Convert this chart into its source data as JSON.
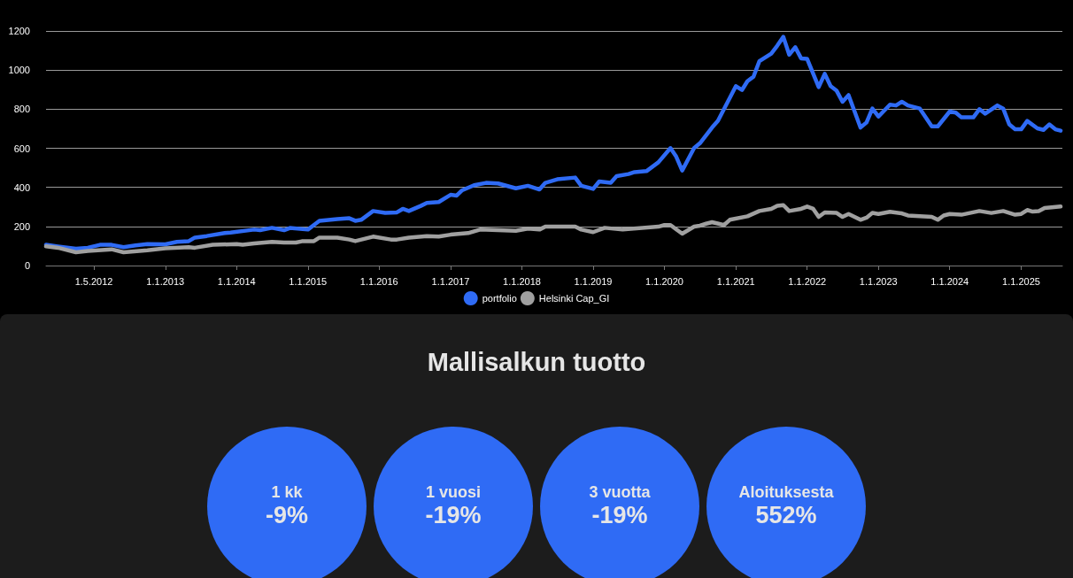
{
  "chart_data": [
    {
      "type": "line",
      "xlim": [
        "2011-05-01",
        "2025-07-31"
      ],
      "ylim": [
        0,
        1200
      ],
      "yticks": [
        0,
        200,
        400,
        600,
        800,
        1000,
        1200
      ],
      "xticks": [
        {
          "value": "2012-01-01",
          "label": "1.5.2012"
        },
        {
          "value": "2013-01-01",
          "label": "1.1.2013"
        },
        {
          "value": "2014-01-01",
          "label": "1.1.2014"
        },
        {
          "value": "2015-01-01",
          "label": "1.1.2015"
        },
        {
          "value": "2016-01-01",
          "label": "1.1.2016"
        },
        {
          "value": "2017-01-01",
          "label": "1.1.2017"
        },
        {
          "value": "2018-01-01",
          "label": "1.1.2018"
        },
        {
          "value": "2019-01-01",
          "label": "1.1.2019"
        },
        {
          "value": "2020-01-01",
          "label": "1.1.2020"
        },
        {
          "value": "2021-01-01",
          "label": "1.1.2021"
        },
        {
          "value": "2022-01-01",
          "label": "1.1.2022"
        },
        {
          "value": "2023-01-01",
          "label": "1.1.2023"
        },
        {
          "value": "2024-01-01",
          "label": "1.1.2024"
        },
        {
          "value": "2025-01-01",
          "label": "1.1.2025"
        }
      ],
      "grid": "y",
      "legend": "bottom",
      "marker": "none",
      "line_style": "solid",
      "series": [
        {
          "name": "portfolio",
          "color": "#2f6bf5",
          "x": [
            "2011-05",
            "2011-07",
            "2011-10",
            "2011-12",
            "2012-02",
            "2012-04",
            "2012-06",
            "2012-08",
            "2012-10",
            "2013-01",
            "2013-03",
            "2013-05",
            "2013-06",
            "2013-08",
            "2013-11",
            "2013-12",
            "2014-04",
            "2014-05",
            "2014-07",
            "2014-09",
            "2014-10",
            "2015-01",
            "2015-03",
            "2015-06",
            "2015-08",
            "2015-09",
            "2015-10",
            "2015-12",
            "2016-02",
            "2016-04",
            "2016-05",
            "2016-06",
            "2016-08",
            "2016-09",
            "2016-11",
            "2017-01",
            "2017-02",
            "2017-03",
            "2017-05",
            "2017-07",
            "2017-09",
            "2017-12",
            "2018-02",
            "2018-04",
            "2018-05",
            "2018-07",
            "2018-10",
            "2018-11",
            "2019-01",
            "2019-02",
            "2019-04",
            "2019-05",
            "2019-07",
            "2019-08",
            "2019-10",
            "2019-12",
            "2020-02",
            "2020-03",
            "2020-04",
            "2020-06",
            "2020-07",
            "2020-09",
            "2020-10",
            "2020-11",
            "2021-01",
            "2021-02",
            "2021-03",
            "2021-04",
            "2021-05",
            "2021-07",
            "2021-08",
            "2021-09",
            "2021-10",
            "2021-11",
            "2021-12",
            "2022-01",
            "2022-03",
            "2022-04",
            "2022-05",
            "2022-06",
            "2022-07",
            "2022-08",
            "2022-10",
            "2022-11",
            "2022-12",
            "2023-01",
            "2023-03",
            "2023-04",
            "2023-05",
            "2023-06",
            "2023-08",
            "2023-10",
            "2023-11",
            "2024-01",
            "2024-02",
            "2024-03",
            "2024-05",
            "2024-06",
            "2024-07",
            "2024-09",
            "2024-10",
            "2024-11",
            "2024-12",
            "2025-01",
            "2025-02",
            "2025-03-25",
            "2025-04-25",
            "2025-05-25",
            "2025-06-25",
            "2025-07-22"
          ],
          "values": [
            106,
            98,
            86,
            91,
            106,
            106,
            94,
            103,
            110,
            109,
            121,
            125,
            143,
            151,
            166,
            169,
            184,
            181,
            193,
            181,
            192,
            184,
            229,
            238,
            242,
            229,
            234,
            279,
            269,
            272,
            290,
            279,
            305,
            320,
            325,
            362,
            358,
            385,
            411,
            423,
            420,
            395,
            408,
            389,
            423,
            441,
            450,
            408,
            392,
            430,
            423,
            457,
            468,
            478,
            483,
            528,
            601,
            558,
            486,
            601,
            626,
            706,
            740,
            800,
            918,
            898,
            943,
            966,
            1045,
            1084,
            1125,
            1170,
            1079,
            1117,
            1060,
            1057,
            913,
            981,
            918,
            894,
            838,
            872,
            706,
            732,
            803,
            762,
            823,
            819,
            838,
            819,
            803,
            712,
            712,
            788,
            782,
            758,
            758,
            800,
            777,
            819,
            803,
            722,
            697,
            697,
            740,
            702,
            694,
            722,
            697,
            690
          ]
        },
        {
          "name": "Helsinki Cap_GI",
          "color": "#a0a0a0",
          "x": [
            "2011-05",
            "2011-07",
            "2011-10",
            "2011-12",
            "2012-04",
            "2012-06",
            "2012-10",
            "2013-01",
            "2013-05",
            "2013-06",
            "2013-09",
            "2014-01",
            "2014-02",
            "2014-04",
            "2014-07",
            "2014-09",
            "2014-11",
            "2014-12",
            "2015-02",
            "2015-03",
            "2015-06",
            "2015-08",
            "2015-09",
            "2015-12",
            "2016-03",
            "2016-04",
            "2016-06",
            "2016-09",
            "2016-11",
            "2017-01",
            "2017-04",
            "2017-06",
            "2017-09",
            "2017-12",
            "2018-02",
            "2018-04",
            "2018-05",
            "2018-10",
            "2018-11",
            "2019-01",
            "2019-03",
            "2019-06",
            "2019-12",
            "2020-01",
            "2020-02",
            "2020-04",
            "2020-06",
            "2020-07",
            "2020-08",
            "2020-09",
            "2020-11",
            "2020-12",
            "2021-03",
            "2021-05",
            "2021-07",
            "2021-08",
            "2021-09",
            "2021-10",
            "2021-12",
            "2022-01",
            "2022-02",
            "2022-03",
            "2022-04",
            "2022-06",
            "2022-07",
            "2022-08",
            "2022-10",
            "2022-11",
            "2022-12",
            "2023-01",
            "2023-03",
            "2023-05",
            "2023-06",
            "2023-10",
            "2023-11",
            "2023-12",
            "2024-01",
            "2024-03",
            "2024-06",
            "2024-08",
            "2024-10",
            "2024-12",
            "2025-01",
            "2025-02",
            "2025-03",
            "2025-04",
            "2025-05",
            "2025-07-22"
          ],
          "values": [
            98,
            91,
            68,
            75,
            83,
            68,
            78,
            88,
            94,
            91,
            106,
            110,
            106,
            113,
            121,
            118,
            118,
            124,
            125,
            143,
            143,
            133,
            125,
            148,
            133,
            133,
            143,
            151,
            148,
            158,
            166,
            184,
            181,
            178,
            189,
            184,
            199,
            199,
            184,
            171,
            193,
            184,
            199,
            207,
            207,
            163,
            199,
            204,
            214,
            222,
            207,
            234,
            252,
            279,
            290,
            306,
            309,
            279,
            290,
            302,
            290,
            249,
            272,
            269,
            249,
            264,
            234,
            245,
            269,
            264,
            275,
            267,
            256,
            249,
            234,
            256,
            264,
            260,
            279,
            269,
            279,
            260,
            264,
            284,
            276,
            279,
            294,
            302
          ]
        }
      ]
    },
    {
      "type": "other",
      "title": "Mallisalkun tuotto",
      "annotations": [
        "1 kk",
        "-9%",
        "1 vuosi",
        "-19%",
        "3 vuotta",
        "-19%",
        "Aloituksesta",
        "552%"
      ]
    }
  ]
}
